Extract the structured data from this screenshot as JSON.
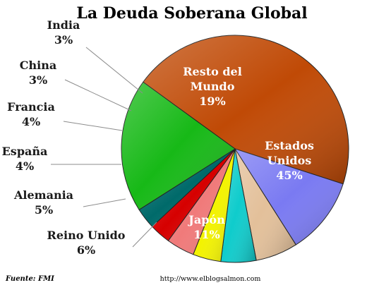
{
  "chart_data": {
    "type": "pie",
    "title": "La Deuda Soberana Global",
    "unit": "%",
    "slices": [
      {
        "label": [
          "Estados",
          "Unidos"
        ],
        "value": 45,
        "display": "45%",
        "color": "#c04a06",
        "label_pos": "inside"
      },
      {
        "label": [
          "Japón"
        ],
        "value": 11,
        "display": "11%",
        "color": "#7a7af2",
        "label_pos": "inside"
      },
      {
        "label": [
          "Reino Unido"
        ],
        "value": 6,
        "display": "6%",
        "color": "#e3c09a",
        "label_pos": "outside"
      },
      {
        "label": [
          "Alemania"
        ],
        "value": 5,
        "display": "5%",
        "color": "#0fcccc",
        "label_pos": "outside"
      },
      {
        "label": [
          "España"
        ],
        "value": 4,
        "display": "4%",
        "color": "#f3f300",
        "label_pos": "outside"
      },
      {
        "label": [
          "Francia"
        ],
        "value": 4,
        "display": "4%",
        "color": "#f07a7a",
        "label_pos": "outside"
      },
      {
        "label": [
          "China"
        ],
        "value": 3,
        "display": "3%",
        "color": "#d60000",
        "label_pos": "outside"
      },
      {
        "label": [
          "India"
        ],
        "value": 3,
        "display": "3%",
        "color": "#006a6a",
        "label_pos": "outside"
      },
      {
        "label": [
          "Resto del",
          "Mundo"
        ],
        "value": 19,
        "display": "19%",
        "color": "#17b917",
        "label_pos": "inside"
      }
    ]
  },
  "footer": {
    "source": "Fuente: FMI",
    "url": "http://www.elblogsalmon.com"
  }
}
